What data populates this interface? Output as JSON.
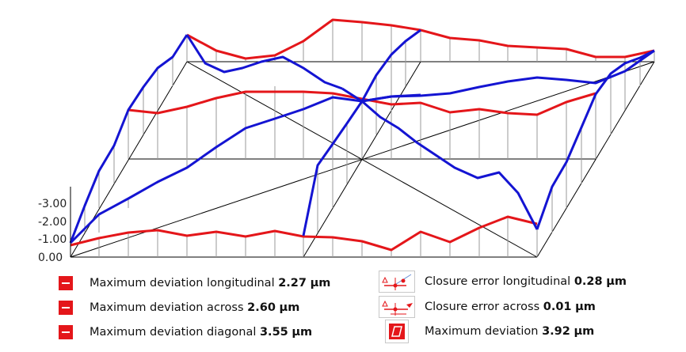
{
  "y_axis": {
    "ticks": [
      "-3.00",
      "-2.00",
      "-1.00",
      "0.00"
    ]
  },
  "legend": [
    {
      "icon": "red-dash-icon",
      "label": "Maximum deviation longitudinal",
      "value": "2.27",
      "unit": "µm"
    },
    {
      "icon": "red-dash-icon",
      "label": "Maximum deviation across",
      "value": "2.60",
      "unit": "µm"
    },
    {
      "icon": "red-dash-icon",
      "label": "Maximum deviation diagonal",
      "value": "3.55",
      "unit": "µm"
    },
    {
      "icon": "closure-longitudinal-icon",
      "label": "Closure error longitudinal",
      "value": "0.28",
      "unit": "µm"
    },
    {
      "icon": "closure-across-icon",
      "label": "Closure error across",
      "value": "0.01",
      "unit": "µm"
    },
    {
      "icon": "max-deviation-icon",
      "label": "Maximum deviation",
      "value": "3.92",
      "unit": "µm"
    }
  ],
  "colors": {
    "red": "#e4161a",
    "blue": "#1414d2",
    "grid": "#000000",
    "stem": "#9a9a9a"
  }
}
